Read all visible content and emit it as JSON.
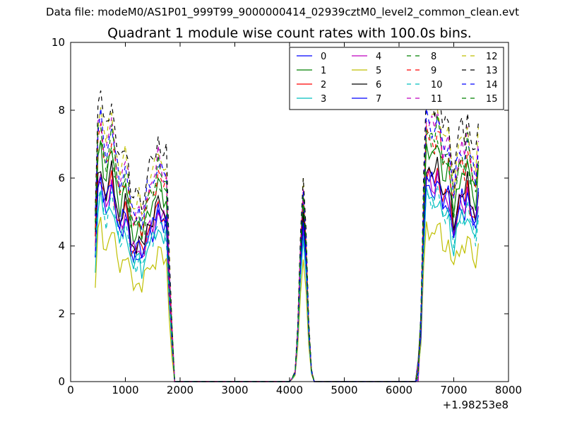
{
  "suptitle": "Data file: modeM0/AS1P01_999T99_9000000414_02939cztM0_level2_common_clean.evt",
  "colors": {
    "b": "#0000ff",
    "g": "#008000",
    "r": "#ff0000",
    "c": "#00bfbf",
    "m": "#bf00bf",
    "y": "#bfbf00",
    "k": "#000000"
  },
  "chart_data": {
    "type": "line",
    "title": "Quadrant 1 module wise count rates with 100.0s bins.",
    "xlabel": "",
    "ylabel": "",
    "x_offset_label": "+1.98253e8",
    "xlim": [
      0,
      8000
    ],
    "ylim": [
      0,
      10
    ],
    "xticks": [
      0,
      1000,
      2000,
      3000,
      4000,
      5000,
      6000,
      7000,
      8000
    ],
    "yticks": [
      0,
      2,
      4,
      6,
      8,
      10
    ],
    "grid": false,
    "legend": {
      "position": "top-right",
      "columns": 4
    },
    "x": [
      450,
      500,
      550,
      600,
      650,
      700,
      750,
      800,
      850,
      900,
      950,
      1000,
      1050,
      1100,
      1150,
      1200,
      1250,
      1300,
      1350,
      1400,
      1450,
      1500,
      1550,
      1600,
      1650,
      1700,
      1750,
      1800,
      1850,
      1900,
      1950,
      2000,
      2100,
      2500,
      3000,
      3500,
      4000,
      4050,
      4100,
      4150,
      4200,
      4250,
      4300,
      4350,
      4400,
      4450,
      4500,
      5000,
      5500,
      6000,
      6300,
      6350,
      6400,
      6450,
      6500,
      6550,
      6600,
      6650,
      6700,
      6750,
      6800,
      6850,
      6900,
      6950,
      7000,
      7050,
      7100,
      7150,
      7200,
      7250,
      7300,
      7350,
      7400,
      7450
    ],
    "base_profile": [
      0.62,
      0.95,
      1.0,
      0.9,
      0.86,
      0.92,
      0.97,
      0.88,
      0.8,
      0.74,
      0.78,
      0.82,
      0.76,
      0.65,
      0.62,
      0.63,
      0.66,
      0.6,
      0.64,
      0.72,
      0.74,
      0.75,
      0.78,
      0.84,
      0.8,
      0.77,
      0.78,
      0.45,
      0.2,
      0.0,
      0.0,
      0.0,
      0.0,
      0.0,
      0.0,
      0.0,
      0.0,
      0.02,
      0.05,
      0.28,
      0.72,
      1.0,
      0.75,
      0.3,
      0.06,
      0.0,
      0.0,
      0.0,
      0.0,
      0.0,
      0.0,
      0.05,
      0.25,
      0.7,
      1.0,
      0.98,
      0.96,
      0.94,
      1.0,
      0.95,
      0.87,
      0.88,
      0.9,
      0.8,
      0.7,
      0.8,
      0.86,
      0.88,
      0.84,
      0.93,
      0.84,
      0.8,
      0.76,
      0.89
    ],
    "series": [
      {
        "name": "0",
        "color": "b",
        "style": "solid",
        "peak": 5.9,
        "spike": 4.4
      },
      {
        "name": "1",
        "color": "g",
        "style": "solid",
        "peak": 7.0,
        "spike": 5.2
      },
      {
        "name": "2",
        "color": "r",
        "style": "solid",
        "peak": 6.2,
        "spike": 4.8
      },
      {
        "name": "3",
        "color": "c",
        "style": "solid",
        "peak": 5.5,
        "spike": 4.2
      },
      {
        "name": "4",
        "color": "m",
        "style": "solid",
        "peak": 6.1,
        "spike": 4.6
      },
      {
        "name": "5",
        "color": "y",
        "style": "solid",
        "peak": 4.6,
        "spike": 3.6
      },
      {
        "name": "6",
        "color": "k",
        "style": "solid",
        "peak": 6.4,
        "spike": 5.0
      },
      {
        "name": "7",
        "color": "b",
        "style": "solid",
        "peak": 6.1,
        "spike": 4.7
      },
      {
        "name": "8",
        "color": "g",
        "style": "dashed",
        "peak": 7.2,
        "spike": 5.4
      },
      {
        "name": "9",
        "color": "r",
        "style": "dashed",
        "peak": 7.4,
        "spike": 5.5
      },
      {
        "name": "10",
        "color": "c",
        "style": "dashed",
        "peak": 5.6,
        "spike": 4.3
      },
      {
        "name": "11",
        "color": "m",
        "style": "dashed",
        "peak": 7.9,
        "spike": 5.7
      },
      {
        "name": "12",
        "color": "y",
        "style": "dashed",
        "peak": 8.2,
        "spike": 6.0
      },
      {
        "name": "13",
        "color": "k",
        "style": "dashed",
        "peak": 8.6,
        "spike": 6.0
      },
      {
        "name": "14",
        "color": "b",
        "style": "dashed",
        "peak": 7.8,
        "spike": 5.6
      },
      {
        "name": "15",
        "color": "g",
        "style": "dashed",
        "peak": 7.6,
        "spike": 5.5
      }
    ]
  }
}
